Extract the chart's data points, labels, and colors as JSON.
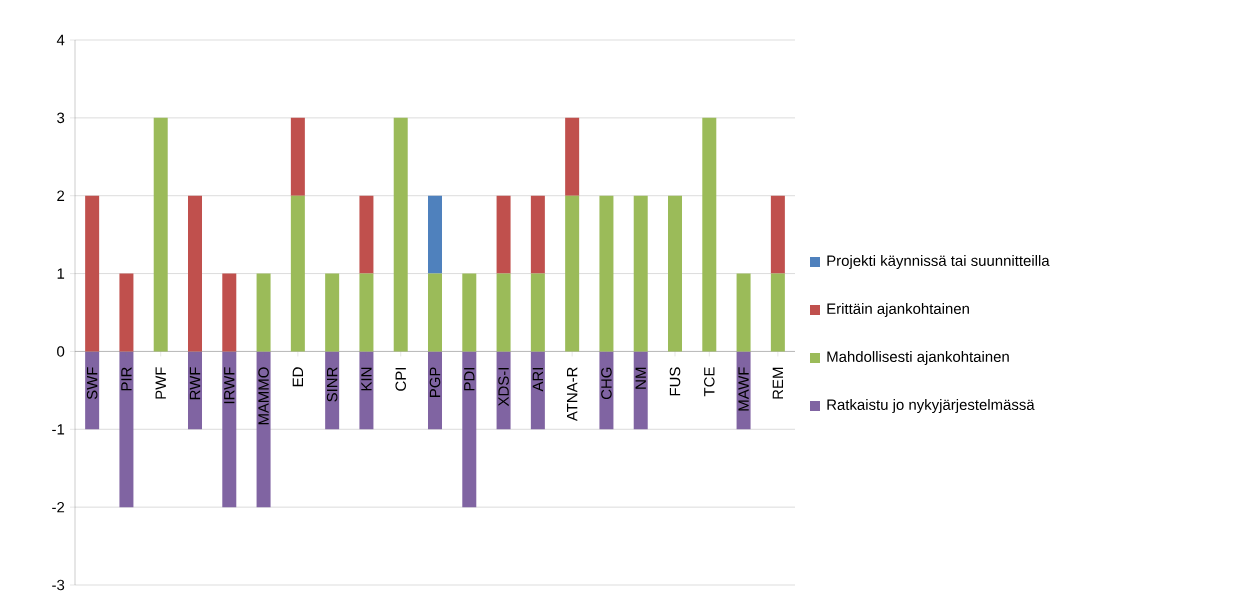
{
  "chart_data": {
    "type": "bar",
    "stacked": true,
    "categories": [
      "SWF",
      "PIR",
      "PWF",
      "RWF",
      "IRWF",
      "MAMMO",
      "ED",
      "SINR",
      "KIN",
      "CPI",
      "PGP",
      "PDI",
      "XDS-I",
      "ARI",
      "ATNA-R",
      "CHG",
      "NM",
      "FUS",
      "TCE",
      "MAWF",
      "REM"
    ],
    "series": [
      {
        "name": "Mahdollisesti ajankohtainen",
        "color": "#9bbb59",
        "values": [
          0,
          0,
          3,
          0,
          0,
          1,
          2,
          1,
          1,
          3,
          1,
          1,
          1,
          1,
          2,
          2,
          2,
          2,
          3,
          1,
          1
        ]
      },
      {
        "name": "Erittäin ajankohtainen",
        "color": "#c0504d",
        "values": [
          2,
          1,
          0,
          2,
          1,
          0,
          1,
          0,
          1,
          0,
          0,
          0,
          1,
          1,
          1,
          0,
          0,
          0,
          0,
          0,
          1
        ]
      },
      {
        "name": "Projekti käynnissä tai suunnitteilla",
        "color": "#4f81bd",
        "values": [
          0,
          0,
          0,
          0,
          0,
          0,
          0,
          0,
          0,
          0,
          1,
          0,
          0,
          0,
          0,
          0,
          0,
          0,
          0,
          0,
          0
        ]
      },
      {
        "name": "Ratkaistu jo nykyjärjestelmässä",
        "color": "#8064a2",
        "values": [
          -1,
          -2,
          0,
          -1,
          -2,
          -2,
          0,
          -1,
          -1,
          0,
          -1,
          -2,
          -1,
          -1,
          0,
          -1,
          -1,
          0,
          0,
          -1,
          0
        ]
      }
    ],
    "ylim": [
      -3,
      4
    ],
    "yticks": [
      -3,
      -2,
      -1,
      0,
      1,
      2,
      3,
      4
    ],
    "grid": "y",
    "legend": "right"
  }
}
